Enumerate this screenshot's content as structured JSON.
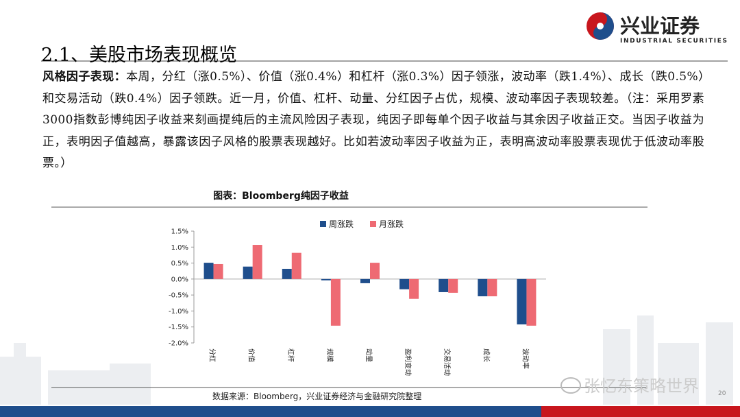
{
  "header": {
    "title": "2.1、美股市场表现概览"
  },
  "logo": {
    "name": "兴业证券",
    "subtitle": "INDUSTRIAL SECURITIES"
  },
  "paragraph": {
    "label": "风格因子表现：",
    "text": "本周，分红（涨0.5%）、价值（涨0.4%）和杠杆（涨0.3%）因子领涨，波动率（跌1.4%）、成长（跌0.5%）和交易活动（跌0.4%）因子领跌。近一月，价值、杠杆、动量、分红因子占优，规模、波动率因子表现较差。（注：采用罗素3000指数彭博纯因子收益来刻画提纯后的主流风险因子表现，纯因子即每单个因子收益与其余因子收益正交。当因子收益为正，表明因子值越高，暴露该因子风格的股票表现越好。比如若波动率因子收益为正，表明高波动率股票表现优于低波动率股票。）"
  },
  "chart_data": {
    "type": "bar",
    "title": "图表：Bloomberg纯因子收益",
    "categories": [
      "分红",
      "价值",
      "杠杆",
      "规模",
      "动量",
      "盈利变动",
      "交易活动",
      "成长",
      "波动率"
    ],
    "series": [
      {
        "name": "周涨跌",
        "color": "#1f4e8c",
        "values": [
          0.51,
          0.39,
          0.32,
          -0.04,
          -0.13,
          -0.32,
          -0.41,
          -0.54,
          -1.42
        ]
      },
      {
        "name": "月涨跌",
        "color": "#ee6a73",
        "values": [
          0.47,
          1.07,
          0.82,
          -1.46,
          0.51,
          -0.62,
          -0.43,
          -0.54,
          -1.46
        ]
      }
    ],
    "ylim": [
      -2.0,
      1.5
    ],
    "yticks": [
      {
        "value": -2.0,
        "label": "-2.0%"
      },
      {
        "value": -1.5,
        "label": "-1.5%"
      },
      {
        "value": -1.0,
        "label": "-1.0%"
      },
      {
        "value": -0.5,
        "label": "-0.5%"
      },
      {
        "value": 0.0,
        "label": "0.0%"
      },
      {
        "value": 0.5,
        "label": "0.5%"
      },
      {
        "value": 1.0,
        "label": "1.0%"
      },
      {
        "value": 1.5,
        "label": "1.5%"
      }
    ]
  },
  "footer": {
    "source": "数据来源：Bloomberg，兴业证券经济与金融研究院整理",
    "page": "20"
  },
  "watermark": "张忆东策略世界"
}
